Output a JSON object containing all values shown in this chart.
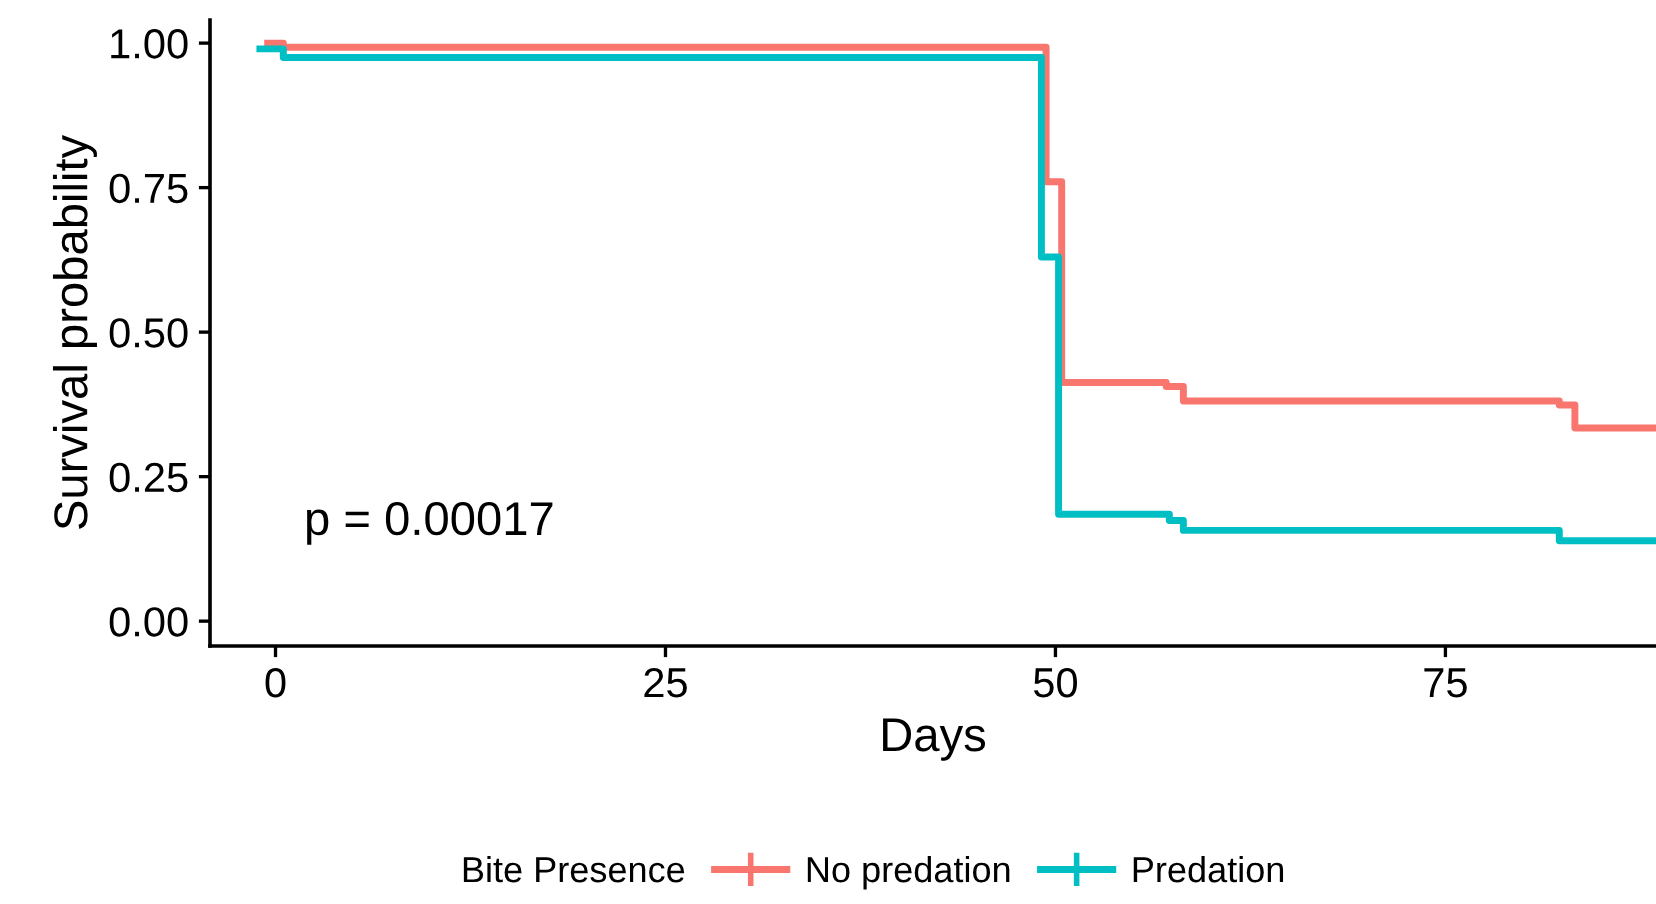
{
  "chart_data": {
    "type": "step",
    "xlabel": "Days",
    "ylabel": "Survival probability",
    "legend_title": "Bite Presence",
    "legend": "bottom",
    "grid": false,
    "marker": "none",
    "line_style": "solid",
    "xlim": [
      -4.2,
      88.5
    ],
    "ylim": [
      -0.043,
      1.04
    ],
    "xticks": [
      0,
      25,
      50,
      75
    ],
    "yticks": [
      {
        "value": 0,
        "label": "0.00"
      },
      {
        "value": 0.25,
        "label": "0.25"
      },
      {
        "value": 0.5,
        "label": "0.50"
      },
      {
        "value": 0.75,
        "label": "0.75"
      },
      {
        "value": 1,
        "label": "1.00"
      }
    ],
    "annotations": [
      "p = 0.00017"
    ],
    "series": [
      {
        "name": "No predation",
        "color": "#f8766d",
        "x": [
          -0.5,
          0.5,
          49.4,
          50.4,
          57.1,
          58.2,
          82.3,
          83.3,
          88.5
        ],
        "values": [
          1.0,
          0.993,
          0.76,
          0.413,
          0.406,
          0.381,
          0.374,
          0.334,
          0.334
        ]
      },
      {
        "name": "Predation",
        "color": "#00bfc4",
        "x": [
          -1,
          0.5,
          49.1,
          50.2,
          57.3,
          58.2,
          82.3,
          88.5
        ],
        "values": [
          0.99,
          0.975,
          0.63,
          0.185,
          0.174,
          0.157,
          0.139,
          0.139
        ]
      }
    ]
  }
}
